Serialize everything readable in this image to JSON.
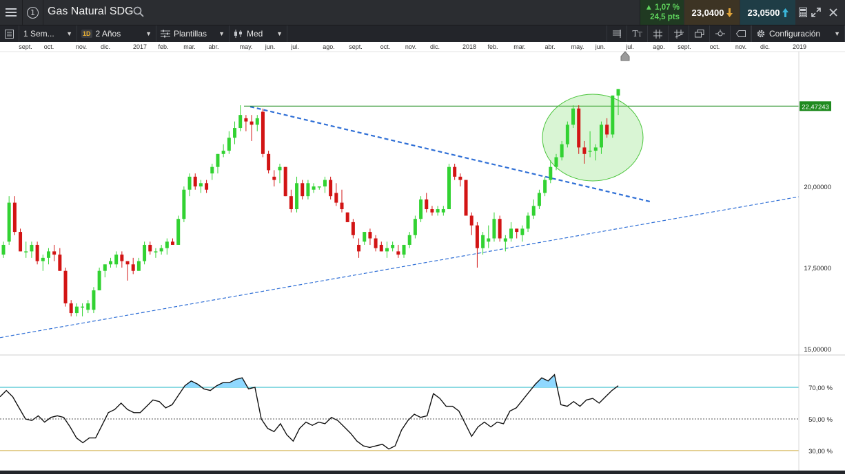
{
  "header": {
    "instrument": "Gas Natural SDG",
    "change_pct": "▲ 1,07 %",
    "change_pts": "24,5 pts",
    "sell_price": "23,0400",
    "buy_price": "23,0500",
    "icons": [
      "menu-icon",
      "info-icon",
      "search-icon",
      "calculator-icon",
      "expand-icon",
      "close-icon"
    ]
  },
  "toolbar": {
    "interval": "1 Sem...",
    "range_badge": "1D",
    "range": "2 Años",
    "templates": "Plantillas",
    "price_type": "Med",
    "settings": "Configuración"
  },
  "colors": {
    "up": "#32d232",
    "down": "#d21414",
    "trend_line": "#2f6fd6",
    "resistance": "#1c8a1c",
    "label_bg": "#1f8a1f",
    "rsi_upper": "#1ab5c5",
    "rsi_lower": "#c9a227",
    "rsi_fill": "#8fd8ff"
  },
  "chart_data": {
    "type": "candlestick",
    "time_labels": [
      "sept.",
      "oct.",
      "nov.",
      "dic.",
      "2017",
      "feb.",
      "mar.",
      "abr.",
      "may.",
      "jun.",
      "jul.",
      "ago.",
      "sept.",
      "oct.",
      "nov.",
      "dic.",
      "2018",
      "feb.",
      "mar.",
      "abr.",
      "may.",
      "jun.",
      "jul.",
      "ago.",
      "sept.",
      "oct.",
      "nov.",
      "dic.",
      "2019"
    ],
    "price_axis_labels": [
      "20,00000",
      "17,50000",
      "15,00000"
    ],
    "price_axis_values": [
      20,
      17.5,
      15
    ],
    "resistance_label": "22,47243",
    "resistance_value": 22.47243,
    "candles": [
      {
        "o": 17.9,
        "h": 18.3,
        "l": 17.8,
        "c": 18.2
      },
      {
        "o": 18.3,
        "h": 19.7,
        "l": 18.2,
        "c": 19.5
      },
      {
        "o": 19.5,
        "h": 19.7,
        "l": 18.5,
        "c": 18.6
      },
      {
        "o": 18.6,
        "h": 18.7,
        "l": 18.0,
        "c": 18.0
      },
      {
        "o": 18.0,
        "h": 18.3,
        "l": 17.8,
        "c": 18.0
      },
      {
        "o": 18.0,
        "h": 18.3,
        "l": 17.8,
        "c": 18.2
      },
      {
        "o": 18.2,
        "h": 18.3,
        "l": 17.6,
        "c": 17.7
      },
      {
        "o": 17.7,
        "h": 17.9,
        "l": 17.4,
        "c": 17.8
      },
      {
        "o": 17.8,
        "h": 18.1,
        "l": 17.6,
        "c": 18.0
      },
      {
        "o": 18.0,
        "h": 18.2,
        "l": 17.7,
        "c": 17.9
      },
      {
        "o": 17.9,
        "h": 18.1,
        "l": 17.4,
        "c": 17.4
      },
      {
        "o": 17.4,
        "h": 17.5,
        "l": 16.3,
        "c": 16.4
      },
      {
        "o": 16.4,
        "h": 16.5,
        "l": 16.0,
        "c": 16.1
      },
      {
        "o": 16.1,
        "h": 16.4,
        "l": 16.0,
        "c": 16.3
      },
      {
        "o": 16.3,
        "h": 16.4,
        "l": 16.0,
        "c": 16.3
      },
      {
        "o": 16.2,
        "h": 16.5,
        "l": 16.1,
        "c": 16.4
      },
      {
        "o": 16.2,
        "h": 16.9,
        "l": 16.1,
        "c": 16.8
      },
      {
        "o": 16.8,
        "h": 17.5,
        "l": 16.8,
        "c": 17.4
      },
      {
        "o": 17.4,
        "h": 17.6,
        "l": 17.2,
        "c": 17.6
      },
      {
        "o": 17.6,
        "h": 17.8,
        "l": 17.5,
        "c": 17.7
      },
      {
        "o": 17.6,
        "h": 18.0,
        "l": 17.5,
        "c": 17.9
      },
      {
        "o": 17.9,
        "h": 18.0,
        "l": 17.5,
        "c": 17.7
      },
      {
        "o": 17.7,
        "h": 17.7,
        "l": 17.1,
        "c": 17.6
      },
      {
        "o": 17.6,
        "h": 17.8,
        "l": 17.3,
        "c": 17.4
      },
      {
        "o": 17.4,
        "h": 17.8,
        "l": 17.4,
        "c": 17.7
      },
      {
        "o": 17.7,
        "h": 18.3,
        "l": 17.6,
        "c": 18.2
      },
      {
        "o": 18.2,
        "h": 18.3,
        "l": 17.9,
        "c": 18.0
      },
      {
        "o": 18.0,
        "h": 18.1,
        "l": 17.8,
        "c": 18.0
      },
      {
        "o": 18.0,
        "h": 18.2,
        "l": 17.9,
        "c": 18.1
      },
      {
        "o": 18.1,
        "h": 18.4,
        "l": 17.9,
        "c": 18.3
      },
      {
        "o": 18.3,
        "h": 18.4,
        "l": 18.2,
        "c": 18.2
      },
      {
        "o": 18.2,
        "h": 19.1,
        "l": 18.2,
        "c": 19.0
      },
      {
        "o": 19.0,
        "h": 20.0,
        "l": 18.9,
        "c": 19.9
      },
      {
        "o": 19.9,
        "h": 20.4,
        "l": 19.7,
        "c": 20.3
      },
      {
        "o": 20.3,
        "h": 20.4,
        "l": 19.9,
        "c": 20.0
      },
      {
        "o": 20.0,
        "h": 20.2,
        "l": 19.8,
        "c": 20.1
      },
      {
        "o": 20.1,
        "h": 20.2,
        "l": 19.8,
        "c": 19.9
      },
      {
        "o": 20.4,
        "h": 20.7,
        "l": 20.2,
        "c": 20.6
      },
      {
        "o": 20.6,
        "h": 21.0,
        "l": 20.4,
        "c": 21.0
      },
      {
        "o": 21.0,
        "h": 21.3,
        "l": 20.9,
        "c": 21.1
      },
      {
        "o": 21.1,
        "h": 21.7,
        "l": 21.0,
        "c": 21.5
      },
      {
        "o": 21.5,
        "h": 22.0,
        "l": 21.3,
        "c": 21.8
      },
      {
        "o": 21.8,
        "h": 22.5,
        "l": 21.7,
        "c": 22.2
      },
      {
        "o": 22.1,
        "h": 22.2,
        "l": 21.7,
        "c": 22.0
      },
      {
        "o": 22.0,
        "h": 22.2,
        "l": 21.4,
        "c": 21.9
      },
      {
        "o": 21.9,
        "h": 22.2,
        "l": 21.7,
        "c": 22.1
      },
      {
        "o": 22.3,
        "h": 22.4,
        "l": 20.9,
        "c": 21.0
      },
      {
        "o": 21.0,
        "h": 21.1,
        "l": 20.4,
        "c": 20.5
      },
      {
        "o": 20.3,
        "h": 20.5,
        "l": 20.0,
        "c": 20.2
      },
      {
        "o": 20.5,
        "h": 20.7,
        "l": 20.1,
        "c": 20.6
      },
      {
        "o": 20.6,
        "h": 20.6,
        "l": 19.7,
        "c": 19.7
      },
      {
        "o": 19.7,
        "h": 19.9,
        "l": 19.2,
        "c": 19.3
      },
      {
        "o": 19.3,
        "h": 20.3,
        "l": 19.2,
        "c": 20.1
      },
      {
        "o": 20.1,
        "h": 20.2,
        "l": 19.6,
        "c": 19.7
      },
      {
        "o": 19.7,
        "h": 20.2,
        "l": 19.6,
        "c": 20.1
      },
      {
        "o": 19.9,
        "h": 20.1,
        "l": 19.8,
        "c": 20.0
      },
      {
        "o": 20.0,
        "h": 20.0,
        "l": 19.9,
        "c": 20.0
      },
      {
        "o": 20.0,
        "h": 20.3,
        "l": 19.8,
        "c": 20.2
      },
      {
        "o": 20.2,
        "h": 20.3,
        "l": 19.6,
        "c": 19.7
      },
      {
        "o": 19.8,
        "h": 20.1,
        "l": 19.4,
        "c": 19.5
      },
      {
        "o": 19.5,
        "h": 19.9,
        "l": 19.2,
        "c": 19.3
      },
      {
        "o": 19.2,
        "h": 19.2,
        "l": 18.9,
        "c": 18.9
      },
      {
        "o": 18.9,
        "h": 19.0,
        "l": 18.4,
        "c": 18.5
      },
      {
        "o": 18.2,
        "h": 18.4,
        "l": 17.8,
        "c": 18.0
      },
      {
        "o": 18.3,
        "h": 18.6,
        "l": 18.2,
        "c": 18.6
      },
      {
        "o": 18.6,
        "h": 18.7,
        "l": 18.2,
        "c": 18.4
      },
      {
        "o": 18.4,
        "h": 18.5,
        "l": 18.0,
        "c": 18.1
      },
      {
        "o": 18.2,
        "h": 18.3,
        "l": 18.0,
        "c": 18.0
      },
      {
        "o": 18.0,
        "h": 18.3,
        "l": 17.8,
        "c": 18.1
      },
      {
        "o": 18.1,
        "h": 18.3,
        "l": 18.0,
        "c": 18.2
      },
      {
        "o": 18.0,
        "h": 18.2,
        "l": 17.8,
        "c": 17.9
      },
      {
        "o": 17.9,
        "h": 18.2,
        "l": 17.8,
        "c": 18.2
      },
      {
        "o": 18.2,
        "h": 18.6,
        "l": 18.1,
        "c": 18.5
      },
      {
        "o": 18.5,
        "h": 19.1,
        "l": 18.4,
        "c": 19.0
      },
      {
        "o": 19.0,
        "h": 19.7,
        "l": 18.9,
        "c": 19.6
      },
      {
        "o": 19.6,
        "h": 19.8,
        "l": 19.2,
        "c": 19.3
      },
      {
        "o": 19.3,
        "h": 19.4,
        "l": 19.1,
        "c": 19.2
      },
      {
        "o": 19.2,
        "h": 19.4,
        "l": 19.1,
        "c": 19.3
      },
      {
        "o": 19.2,
        "h": 19.4,
        "l": 19.1,
        "c": 19.3
      },
      {
        "o": 19.3,
        "h": 20.7,
        "l": 19.3,
        "c": 20.6
      },
      {
        "o": 20.6,
        "h": 20.7,
        "l": 20.2,
        "c": 20.3
      },
      {
        "o": 20.3,
        "h": 20.4,
        "l": 20.0,
        "c": 20.2
      },
      {
        "o": 20.2,
        "h": 20.2,
        "l": 19.1,
        "c": 19.1
      },
      {
        "o": 19.1,
        "h": 19.2,
        "l": 18.5,
        "c": 18.8
      },
      {
        "o": 18.8,
        "h": 18.9,
        "l": 17.5,
        "c": 18.1
      },
      {
        "o": 18.1,
        "h": 18.6,
        "l": 17.9,
        "c": 18.5
      },
      {
        "o": 18.3,
        "h": 18.8,
        "l": 18.1,
        "c": 18.4
      },
      {
        "o": 18.4,
        "h": 19.2,
        "l": 18.3,
        "c": 19.0
      },
      {
        "o": 19.0,
        "h": 19.1,
        "l": 18.3,
        "c": 18.4
      },
      {
        "o": 18.3,
        "h": 18.5,
        "l": 18.0,
        "c": 18.4
      },
      {
        "o": 18.4,
        "h": 18.9,
        "l": 18.3,
        "c": 18.7
      },
      {
        "o": 18.7,
        "h": 18.7,
        "l": 18.4,
        "c": 18.6
      },
      {
        "o": 18.5,
        "h": 18.8,
        "l": 18.3,
        "c": 18.7
      },
      {
        "o": 18.7,
        "h": 19.2,
        "l": 18.6,
        "c": 19.1
      },
      {
        "o": 19.1,
        "h": 19.6,
        "l": 19.0,
        "c": 19.4
      },
      {
        "o": 19.4,
        "h": 19.9,
        "l": 19.3,
        "c": 19.8
      },
      {
        "o": 19.8,
        "h": 20.3,
        "l": 19.7,
        "c": 20.2
      },
      {
        "o": 20.2,
        "h": 20.8,
        "l": 20.1,
        "c": 20.6
      },
      {
        "o": 20.6,
        "h": 21.0,
        "l": 20.5,
        "c": 20.9
      },
      {
        "o": 20.9,
        "h": 21.4,
        "l": 20.8,
        "c": 21.3
      },
      {
        "o": 21.3,
        "h": 22.0,
        "l": 21.2,
        "c": 21.9
      },
      {
        "o": 21.9,
        "h": 22.5,
        "l": 21.8,
        "c": 22.4
      },
      {
        "o": 22.4,
        "h": 22.5,
        "l": 21.0,
        "c": 21.2
      },
      {
        "o": 21.2,
        "h": 21.4,
        "l": 20.7,
        "c": 21.0
      },
      {
        "o": 21.1,
        "h": 21.7,
        "l": 20.9,
        "c": 21.1
      },
      {
        "o": 21.1,
        "h": 21.3,
        "l": 20.8,
        "c": 21.2
      },
      {
        "o": 21.2,
        "h": 22.0,
        "l": 21.0,
        "c": 21.9
      },
      {
        "o": 21.9,
        "h": 22.1,
        "l": 21.5,
        "c": 21.6
      },
      {
        "o": 21.6,
        "h": 22.8,
        "l": 21.5,
        "c": 22.8
      },
      {
        "o": 22.8,
        "h": 23.0,
        "l": 22.2,
        "c": 23.0
      }
    ],
    "rsi": {
      "axis_labels": [
        "70,00 %",
        "50,00 %",
        "30,00 %"
      ],
      "axis_values": [
        70,
        50,
        30
      ],
      "values": [
        64,
        68,
        64,
        57,
        50,
        49,
        52,
        48,
        51,
        52,
        51,
        45,
        38,
        35,
        38,
        38,
        46,
        54,
        56,
        60,
        56,
        54,
        54,
        58,
        62,
        61,
        57,
        59,
        65,
        71,
        74,
        72,
        69,
        68,
        71,
        73,
        73,
        75,
        76,
        69,
        70,
        50,
        44,
        42,
        47,
        40,
        36,
        44,
        48,
        46,
        48,
        47,
        51,
        49,
        45,
        41,
        36,
        33,
        32,
        33,
        34,
        31,
        33,
        43,
        49,
        53,
        51,
        52,
        66,
        63,
        58,
        58,
        55,
        47,
        39,
        45,
        48,
        45,
        48,
        47,
        55,
        57,
        62,
        67,
        72,
        76,
        74,
        78,
        59,
        58,
        61,
        58,
        62,
        63,
        60,
        64,
        68,
        71
      ]
    }
  }
}
